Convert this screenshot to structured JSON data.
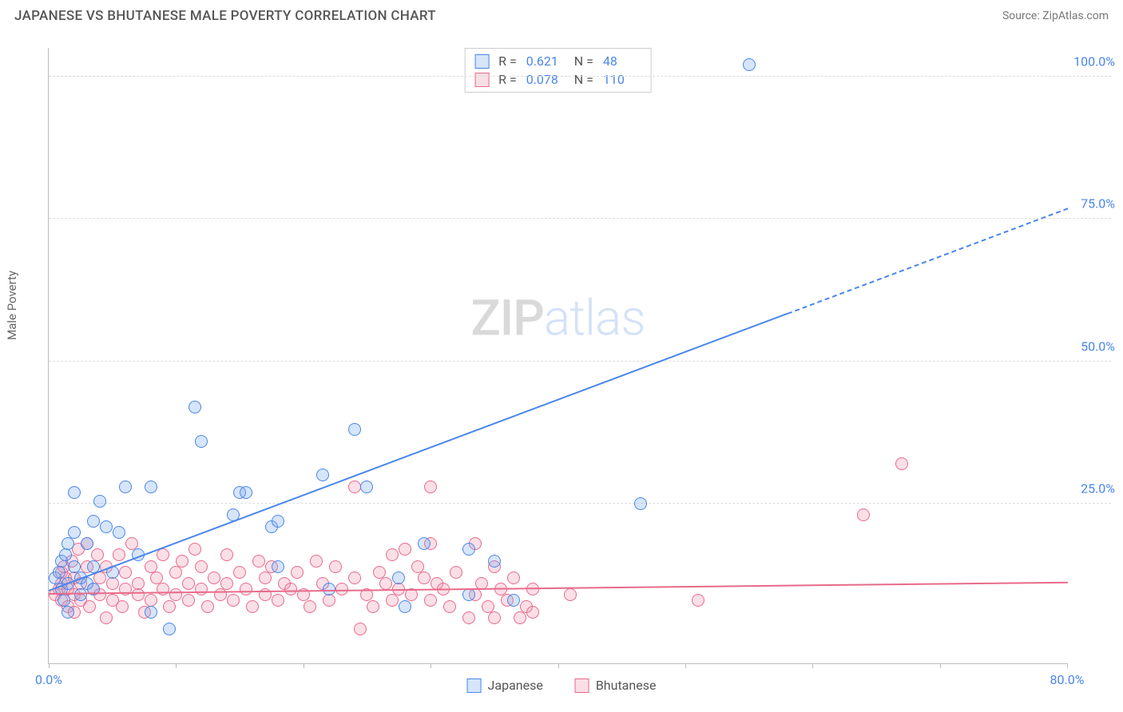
{
  "title": "JAPANESE VS BHUTANESE MALE POVERTY CORRELATION CHART",
  "source": "Source: ZipAtlas.com",
  "watermark": {
    "zip": "ZIP",
    "atlas": "atlas"
  },
  "y_axis_label": "Male Poverty",
  "chart": {
    "type": "scatter",
    "xlim": [
      0,
      80
    ],
    "ylim": [
      -3,
      105
    ],
    "x_ticks": [
      0,
      10,
      20,
      30,
      40,
      50,
      60,
      70,
      80
    ],
    "x_tick_labels": {
      "0": "0.0%",
      "80": "80.0%"
    },
    "x_tick_color": "#4a86e8",
    "y_ticks": [
      25,
      50,
      75,
      100
    ],
    "y_tick_labels": {
      "25": "25.0%",
      "50": "50.0%",
      "75": "75.0%",
      "100": "100.0%"
    },
    "y_tick_color": "#4a86e8",
    "grid_color": "#dddddd",
    "axis_color": "#bbbbbb",
    "background_color": "#ffffff",
    "marker_radius": 8,
    "marker_stroke_width": 1.5,
    "marker_fill_opacity": 0.25,
    "line_width": 2
  },
  "series": [
    {
      "name": "Japanese",
      "color_stroke": "#4a86e8",
      "color_fill": "rgba(120,170,240,0.3)",
      "R": "0.621",
      "N": "48",
      "trend": {
        "x1": 0,
        "y1": 10,
        "x2": 80,
        "y2": 77,
        "solid_until_x": 58
      },
      "points": [
        [
          0.5,
          12
        ],
        [
          0.8,
          13
        ],
        [
          1,
          10
        ],
        [
          1,
          15
        ],
        [
          1.2,
          8
        ],
        [
          1.3,
          16
        ],
        [
          1.5,
          11
        ],
        [
          1.5,
          18
        ],
        [
          1.5,
          6
        ],
        [
          2,
          14
        ],
        [
          2,
          20
        ],
        [
          2,
          27
        ],
        [
          2.5,
          9
        ],
        [
          2.5,
          12
        ],
        [
          3,
          18
        ],
        [
          3,
          11
        ],
        [
          3.5,
          22
        ],
        [
          3.5,
          14
        ],
        [
          3.5,
          10
        ],
        [
          4,
          25.5
        ],
        [
          4.5,
          21
        ],
        [
          5,
          13
        ],
        [
          5.5,
          20
        ],
        [
          6,
          28
        ],
        [
          7,
          16
        ],
        [
          8,
          28
        ],
        [
          8,
          6
        ],
        [
          9.5,
          3
        ],
        [
          11.5,
          42
        ],
        [
          12,
          36
        ],
        [
          14.5,
          23
        ],
        [
          15,
          27
        ],
        [
          15.5,
          27
        ],
        [
          17.5,
          21
        ],
        [
          18,
          14
        ],
        [
          18,
          22
        ],
        [
          21.5,
          30
        ],
        [
          22,
          10
        ],
        [
          24,
          38
        ],
        [
          25,
          28
        ],
        [
          27.5,
          12
        ],
        [
          28,
          7
        ],
        [
          29.5,
          18
        ],
        [
          33,
          9
        ],
        [
          33,
          17
        ],
        [
          35,
          15
        ],
        [
          36.5,
          8
        ],
        [
          46.5,
          25
        ],
        [
          55,
          102
        ]
      ]
    },
    {
      "name": "Bhutanese",
      "color_stroke": "#e86a8a",
      "color_fill": "rgba(240,150,175,0.3)",
      "R": "0.078",
      "N": "110",
      "trend": {
        "x1": 0,
        "y1": 9.5,
        "x2": 80,
        "y2": 11.5,
        "solid_until_x": 80
      },
      "points": [
        [
          0.5,
          9
        ],
        [
          0.8,
          10
        ],
        [
          1,
          8
        ],
        [
          1,
          11
        ],
        [
          1,
          13
        ],
        [
          1.2,
          14
        ],
        [
          1.3,
          12
        ],
        [
          1.5,
          7
        ],
        [
          1.5,
          10
        ],
        [
          1.8,
          15
        ],
        [
          2,
          9
        ],
        [
          2,
          6
        ],
        [
          2,
          12
        ],
        [
          2.3,
          17
        ],
        [
          2.5,
          8
        ],
        [
          2.5,
          11
        ],
        [
          3,
          18
        ],
        [
          3,
          14
        ],
        [
          3.2,
          7
        ],
        [
          3.5,
          10
        ],
        [
          3.8,
          16
        ],
        [
          4,
          9
        ],
        [
          4,
          12
        ],
        [
          4.5,
          5
        ],
        [
          4.5,
          14
        ],
        [
          5,
          11
        ],
        [
          5,
          8
        ],
        [
          5.5,
          16
        ],
        [
          5.8,
          7
        ],
        [
          6,
          10
        ],
        [
          6,
          13
        ],
        [
          6.5,
          18
        ],
        [
          7,
          9
        ],
        [
          7,
          11
        ],
        [
          7.5,
          6
        ],
        [
          8,
          14
        ],
        [
          8,
          8
        ],
        [
          8.5,
          12
        ],
        [
          9,
          16
        ],
        [
          9,
          10
        ],
        [
          9.5,
          7
        ],
        [
          10,
          13
        ],
        [
          10,
          9
        ],
        [
          10.5,
          15
        ],
        [
          11,
          8
        ],
        [
          11,
          11
        ],
        [
          11.5,
          17
        ],
        [
          12,
          10
        ],
        [
          12,
          14
        ],
        [
          12.5,
          7
        ],
        [
          13,
          12
        ],
        [
          13.5,
          9
        ],
        [
          14,
          16
        ],
        [
          14,
          11
        ],
        [
          14.5,
          8
        ],
        [
          15,
          13
        ],
        [
          15.5,
          10
        ],
        [
          16,
          7
        ],
        [
          16.5,
          15
        ],
        [
          17,
          9
        ],
        [
          17,
          12
        ],
        [
          17.5,
          14
        ],
        [
          18,
          8
        ],
        [
          18.5,
          11
        ],
        [
          19,
          10
        ],
        [
          19.5,
          13
        ],
        [
          20,
          9
        ],
        [
          20.5,
          7
        ],
        [
          21,
          15
        ],
        [
          21.5,
          11
        ],
        [
          22,
          8
        ],
        [
          22.5,
          14
        ],
        [
          23,
          10
        ],
        [
          24,
          28
        ],
        [
          24,
          12
        ],
        [
          24.5,
          3
        ],
        [
          25,
          9
        ],
        [
          25.5,
          7
        ],
        [
          26,
          13
        ],
        [
          26.5,
          11
        ],
        [
          27,
          16
        ],
        [
          27,
          8
        ],
        [
          27.5,
          10
        ],
        [
          28,
          17
        ],
        [
          28.5,
          9
        ],
        [
          29,
          14
        ],
        [
          29.5,
          12
        ],
        [
          30,
          28
        ],
        [
          30,
          18
        ],
        [
          30,
          8
        ],
        [
          30.5,
          11
        ],
        [
          31,
          10
        ],
        [
          31.5,
          7
        ],
        [
          32,
          13
        ],
        [
          33,
          5
        ],
        [
          33.5,
          9
        ],
        [
          33.5,
          18
        ],
        [
          34,
          11
        ],
        [
          34.5,
          7
        ],
        [
          35,
          14
        ],
        [
          35,
          5
        ],
        [
          35.5,
          10
        ],
        [
          36,
          8
        ],
        [
          36.5,
          12
        ],
        [
          37,
          5
        ],
        [
          37.5,
          7
        ],
        [
          38,
          10
        ],
        [
          38,
          6
        ],
        [
          41,
          9
        ],
        [
          51,
          8
        ],
        [
          64,
          23
        ],
        [
          67,
          32
        ]
      ]
    }
  ],
  "legend_bottom": [
    {
      "label": "Japanese",
      "color_stroke": "#4a86e8",
      "color_fill": "rgba(120,170,240,0.3)"
    },
    {
      "label": "Bhutanese",
      "color_stroke": "#e86a8a",
      "color_fill": "rgba(240,150,175,0.3)"
    }
  ],
  "stats_box_label_R": "R =",
  "stats_box_label_N": "N =",
  "stats_value_color": "#4a86e8"
}
